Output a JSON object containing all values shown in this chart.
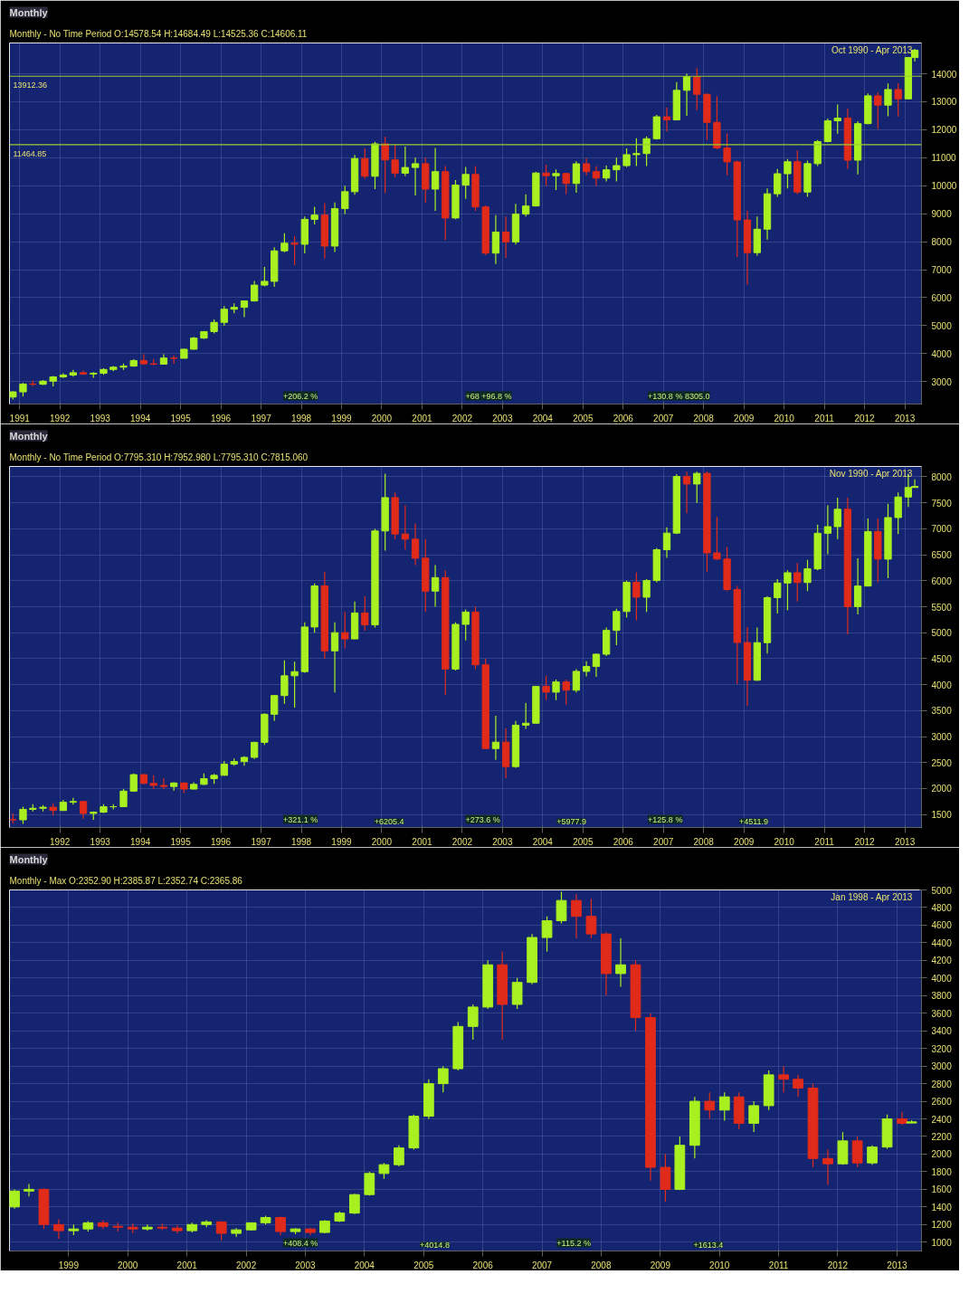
{
  "chart_data": [
    {
      "type": "candlestick",
      "title": "Monthly",
      "subtitle": "Monthly - No Time Period O:14578.54 H:14684.49 L:14525.36 C:14606.11",
      "x": [
        "1990-11",
        "1991-02",
        "1991-05",
        "1991-08",
        "1991-11",
        "1992-02",
        "1992-05",
        "1992-08",
        "1992-11",
        "1993-02",
        "1993-05",
        "1993-08",
        "1993-11",
        "1994-02",
        "1994-05",
        "1994-08",
        "1994-11",
        "1995-02",
        "1995-05",
        "1995-08",
        "1995-11",
        "1996-02",
        "1996-05",
        "1996-08",
        "1996-11",
        "1997-02",
        "1997-05",
        "1997-08",
        "1997-11",
        "1998-02",
        "1998-05",
        "1998-08",
        "1998-11",
        "1999-02",
        "1999-05",
        "1999-08",
        "1999-11",
        "2000-02",
        "2000-05",
        "2000-08",
        "2000-11",
        "2001-02",
        "2001-05",
        "2001-08",
        "2001-11",
        "2002-02",
        "2002-05",
        "2002-08",
        "2002-11",
        "2003-02",
        "2003-05",
        "2003-08",
        "2003-11",
        "2004-02",
        "2004-05",
        "2004-08",
        "2004-11",
        "2005-02",
        "2005-05",
        "2005-08",
        "2005-11",
        "2006-02",
        "2006-05",
        "2006-08",
        "2006-11",
        "2007-02",
        "2007-05",
        "2007-08",
        "2007-11",
        "2008-02",
        "2008-05",
        "2008-08",
        "2008-11",
        "2009-02",
        "2009-05",
        "2009-08",
        "2009-11",
        "2010-02",
        "2010-05",
        "2010-08",
        "2010-11",
        "2011-02",
        "2011-05",
        "2011-08",
        "2011-11",
        "2012-02",
        "2012-05",
        "2012-08",
        "2012-11",
        "2013-02",
        "2013-04"
      ],
      "ohlc": [
        [
          2450,
          2650,
          2360,
          2634
        ],
        [
          2634,
          2950,
          2470,
          2914
        ],
        [
          2914,
          3040,
          2840,
          2906
        ],
        [
          2906,
          3060,
          2880,
          3017
        ],
        [
          3017,
          3200,
          2830,
          3169
        ],
        [
          3169,
          3300,
          3130,
          3236
        ],
        [
          3236,
          3420,
          3180,
          3319
        ],
        [
          3319,
          3400,
          3240,
          3272
        ],
        [
          3272,
          3340,
          3140,
          3301
        ],
        [
          3301,
          3480,
          3240,
          3435
        ],
        [
          3435,
          3560,
          3370,
          3516
        ],
        [
          3516,
          3650,
          3420,
          3555
        ],
        [
          3555,
          3800,
          3530,
          3754
        ],
        [
          3754,
          3980,
          3600,
          3636
        ],
        [
          3636,
          3810,
          3590,
          3625
        ],
        [
          3625,
          3980,
          3620,
          3843
        ],
        [
          3843,
          3940,
          3640,
          3834
        ],
        [
          3834,
          4170,
          3830,
          4158
        ],
        [
          4158,
          4600,
          4150,
          4556
        ],
        [
          4556,
          4800,
          4530,
          4789
        ],
        [
          4789,
          5220,
          4720,
          5117
        ],
        [
          5117,
          5700,
          5000,
          5587
        ],
        [
          5587,
          5800,
          5440,
          5654
        ],
        [
          5654,
          5900,
          5300,
          5882
        ],
        [
          5882,
          6600,
          5860,
          6448
        ],
        [
          6448,
          7100,
          6400,
          6583
        ],
        [
          6583,
          7800,
          6390,
          7672
        ],
        [
          7672,
          8300,
          7620,
          7945
        ],
        [
          7945,
          8200,
          7160,
          7908
        ],
        [
          7908,
          8900,
          7580,
          8799
        ],
        [
          8799,
          9250,
          8620,
          8952
        ],
        [
          8952,
          9380,
          7400,
          7843
        ],
        [
          7843,
          9400,
          7630,
          9181
        ],
        [
          9181,
          10000,
          8990,
          9786
        ],
        [
          9786,
          11100,
          9680,
          10970
        ],
        [
          10970,
          11330,
          10250,
          10337
        ],
        [
          10337,
          11570,
          9880,
          11497
        ],
        [
          11497,
          11750,
          9730,
          10922
        ],
        [
          10922,
          11460,
          10300,
          10448
        ],
        [
          10448,
          11400,
          10350,
          10651
        ],
        [
          10651,
          11000,
          9650,
          10787
        ],
        [
          10787,
          11000,
          9390,
          9879
        ],
        [
          9879,
          11350,
          9100,
          10502
        ],
        [
          10502,
          10700,
          8060,
          8848
        ],
        [
          8848,
          10200,
          8800,
          10022
        ],
        [
          10022,
          10670,
          9530,
          10404
        ],
        [
          10404,
          10700,
          9100,
          9243
        ],
        [
          9243,
          9300,
          7530,
          7592
        ],
        [
          7592,
          8950,
          7200,
          8342
        ],
        [
          8342,
          8900,
          7420,
          7992
        ],
        [
          7992,
          9350,
          7900,
          8985
        ],
        [
          8985,
          9690,
          8900,
          9275
        ],
        [
          9275,
          10490,
          9270,
          10454
        ],
        [
          10454,
          10750,
          10000,
          10358
        ],
        [
          10358,
          10580,
          9850,
          10435
        ],
        [
          10435,
          10450,
          9700,
          10080
        ],
        [
          10080,
          10870,
          9750,
          10783
        ],
        [
          10783,
          10980,
          10370,
          10504
        ],
        [
          10504,
          10700,
          10000,
          10275
        ],
        [
          10275,
          10720,
          10150,
          10569
        ],
        [
          10569,
          11000,
          10150,
          10718
        ],
        [
          10718,
          11330,
          10660,
          11109
        ],
        [
          11109,
          11700,
          10700,
          11150
        ],
        [
          11150,
          11760,
          10700,
          11679
        ],
        [
          11679,
          12530,
          11650,
          12463
        ],
        [
          12463,
          12800,
          11940,
          12354
        ],
        [
          12354,
          13700,
          12350,
          13408
        ],
        [
          13408,
          14000,
          12500,
          13896
        ],
        [
          13896,
          14200,
          12700,
          13265
        ],
        [
          13265,
          13300,
          11630,
          12263
        ],
        [
          12263,
          13200,
          11300,
          11350
        ],
        [
          11350,
          11870,
          10370,
          10851
        ],
        [
          10851,
          10900,
          7450,
          8776
        ],
        [
          8776,
          9100,
          6470,
          7609
        ],
        [
          7609,
          8900,
          7500,
          8447
        ],
        [
          8447,
          9900,
          8080,
          9712
        ],
        [
          9712,
          10600,
          9600,
          10428
        ],
        [
          10428,
          10950,
          9900,
          10857
        ],
        [
          10857,
          11260,
          9700,
          9774
        ],
        [
          9774,
          10900,
          9600,
          10788
        ],
        [
          10788,
          11630,
          10700,
          11578
        ],
        [
          11578,
          12400,
          11550,
          12320
        ],
        [
          12320,
          12900,
          11860,
          12414
        ],
        [
          12414,
          12750,
          10600,
          10913
        ],
        [
          10913,
          12300,
          10400,
          12218
        ],
        [
          12218,
          13300,
          12200,
          13212
        ],
        [
          13212,
          13340,
          12030,
          12880
        ],
        [
          12880,
          13650,
          12480,
          13437
        ],
        [
          13437,
          13660,
          12470,
          13104
        ],
        [
          13104,
          14600,
          13100,
          14579
        ],
        [
          14579,
          14890,
          14440,
          14840
        ]
      ],
      "xlim": [
        "1990-10",
        "2013-06"
      ],
      "xticks": [
        "1991",
        "1992",
        "1993",
        "1994",
        "1995",
        "1996",
        "1997",
        "1998",
        "1999",
        "2000",
        "2001",
        "2002",
        "2003",
        "2004",
        "2005",
        "2006",
        "2007",
        "2008",
        "2009",
        "2010",
        "2011",
        "2012",
        "2013"
      ],
      "ylim": [
        2200,
        15100
      ],
      "yticks": [
        3000,
        4000,
        5000,
        6000,
        7000,
        8000,
        9000,
        10000,
        11000,
        12000,
        13000,
        14000
      ],
      "grid": true,
      "ref_lines": [
        {
          "axis": "y",
          "value": 13912.36,
          "label": "13912.36",
          "color": "#9acd32"
        },
        {
          "axis": "y",
          "value": 11464.85,
          "label": "11464.85",
          "color": "#9acd32"
        }
      ],
      "annotations": [
        "Oct 1990  -  Apr 2013",
        "+206.2 %",
        "+68 +96.8 %",
        "+130.8 % 8305.0"
      ]
    },
    {
      "type": "candlestick",
      "title": "Monthly",
      "subtitle": "Monthly - No Time Period O:7795.310 H:7952.980 L:7795.310 C:7815.060",
      "x": [
        "1990-11",
        "1991-02",
        "1991-05",
        "1991-08",
        "1991-11",
        "1992-02",
        "1992-05",
        "1992-08",
        "1992-11",
        "1993-02",
        "1993-05",
        "1993-08",
        "1993-11",
        "1994-02",
        "1994-05",
        "1994-08",
        "1994-11",
        "1995-02",
        "1995-05",
        "1995-08",
        "1995-11",
        "1996-02",
        "1996-05",
        "1996-08",
        "1996-11",
        "1997-02",
        "1997-05",
        "1997-08",
        "1997-11",
        "1998-02",
        "1998-05",
        "1998-08",
        "1998-11",
        "1999-02",
        "1999-05",
        "1999-08",
        "1999-11",
        "2000-02",
        "2000-05",
        "2000-08",
        "2000-11",
        "2001-02",
        "2001-05",
        "2001-08",
        "2001-11",
        "2002-02",
        "2002-05",
        "2002-08",
        "2002-11",
        "2003-02",
        "2003-05",
        "2003-08",
        "2003-11",
        "2004-02",
        "2004-05",
        "2004-08",
        "2004-11",
        "2005-02",
        "2005-05",
        "2005-08",
        "2005-11",
        "2006-02",
        "2006-05",
        "2006-08",
        "2006-11",
        "2007-02",
        "2007-05",
        "2007-08",
        "2007-11",
        "2008-02",
        "2008-05",
        "2008-08",
        "2008-11",
        "2009-02",
        "2009-05",
        "2009-08",
        "2009-11",
        "2010-02",
        "2010-05",
        "2010-08",
        "2010-11",
        "2011-02",
        "2011-05",
        "2011-08",
        "2011-11",
        "2012-02",
        "2012-05",
        "2012-08",
        "2012-11",
        "2013-02",
        "2013-04"
      ],
      "ohlc": [
        [
          1400,
          1520,
          1330,
          1398
        ],
        [
          1398,
          1650,
          1320,
          1600
        ],
        [
          1600,
          1700,
          1560,
          1620
        ],
        [
          1620,
          1680,
          1560,
          1640
        ],
        [
          1640,
          1720,
          1480,
          1578
        ],
        [
          1578,
          1780,
          1570,
          1736
        ],
        [
          1736,
          1820,
          1690,
          1750
        ],
        [
          1750,
          1760,
          1420,
          1520
        ],
        [
          1520,
          1560,
          1400,
          1545
        ],
        [
          1545,
          1700,
          1530,
          1650
        ],
        [
          1650,
          1700,
          1600,
          1650
        ],
        [
          1650,
          1990,
          1640,
          1950
        ],
        [
          1950,
          2290,
          1940,
          2267
        ],
        [
          2267,
          2280,
          2080,
          2100
        ],
        [
          2100,
          2250,
          1990,
          2060
        ],
        [
          2060,
          2200,
          1990,
          2040
        ],
        [
          2040,
          2120,
          1960,
          2107
        ],
        [
          2107,
          2120,
          1910,
          1990
        ],
        [
          1990,
          2120,
          1980,
          2080
        ],
        [
          2080,
          2290,
          2070,
          2190
        ],
        [
          2190,
          2280,
          2090,
          2254
        ],
        [
          2254,
          2530,
          2250,
          2470
        ],
        [
          2470,
          2580,
          2440,
          2520
        ],
        [
          2520,
          2620,
          2440,
          2600
        ],
        [
          2600,
          2900,
          2570,
          2889
        ],
        [
          2889,
          3450,
          2840,
          3430
        ],
        [
          3430,
          3800,
          3300,
          3790
        ],
        [
          3790,
          4470,
          3630,
          4170
        ],
        [
          4170,
          4440,
          3560,
          4250
        ],
        [
          4250,
          5200,
          4230,
          5110
        ],
        [
          5110,
          5950,
          5000,
          5900
        ],
        [
          5900,
          6170,
          4500,
          4650
        ],
        [
          4650,
          5200,
          3850,
          5000
        ],
        [
          5000,
          5400,
          4700,
          4880
        ],
        [
          4880,
          5600,
          4880,
          5380
        ],
        [
          5380,
          5700,
          5040,
          5150
        ],
        [
          5150,
          7000,
          5100,
          6958
        ],
        [
          6958,
          8060,
          6580,
          7600
        ],
        [
          7600,
          7700,
          6800,
          6900
        ],
        [
          6900,
          7450,
          6600,
          6800
        ],
        [
          6800,
          7100,
          6300,
          6434
        ],
        [
          6434,
          6800,
          5400,
          5800
        ],
        [
          5800,
          6300,
          5500,
          6060
        ],
        [
          6060,
          6200,
          3800,
          4300
        ],
        [
          4300,
          5200,
          4270,
          5160
        ],
        [
          5160,
          5450,
          4850,
          5397
        ],
        [
          5397,
          5500,
          4300,
          4382
        ],
        [
          4382,
          4500,
          2770,
          2770
        ],
        [
          2770,
          3400,
          2550,
          2893
        ],
        [
          2893,
          3160,
          2200,
          2423
        ],
        [
          2423,
          3300,
          2400,
          3220
        ],
        [
          3220,
          3650,
          3150,
          3257
        ],
        [
          3257,
          3970,
          3250,
          3965
        ],
        [
          3965,
          4170,
          3700,
          3856
        ],
        [
          3856,
          4100,
          3700,
          4052
        ],
        [
          4052,
          4100,
          3620,
          3893
        ],
        [
          3893,
          4300,
          3850,
          4256
        ],
        [
          4256,
          4450,
          4160,
          4349
        ],
        [
          4349,
          4600,
          4150,
          4586
        ],
        [
          4586,
          5100,
          4550,
          5044
        ],
        [
          5044,
          5460,
          4760,
          5408
        ],
        [
          5408,
          6000,
          5290,
          5970
        ],
        [
          5970,
          6160,
          5240,
          5684
        ],
        [
          5684,
          6030,
          5400,
          6004
        ],
        [
          6004,
          6630,
          5970,
          6597
        ],
        [
          6597,
          7030,
          6440,
          6917
        ],
        [
          6917,
          8050,
          6900,
          8007
        ],
        [
          8007,
          8100,
          7300,
          7862
        ],
        [
          7862,
          8100,
          7500,
          8067
        ],
        [
          8067,
          8100,
          6170,
          6535
        ],
        [
          6535,
          7230,
          6400,
          6418
        ],
        [
          6418,
          6650,
          5800,
          5831
        ],
        [
          5831,
          5900,
          4014,
          4810
        ],
        [
          4810,
          5110,
          3590,
          4085
        ],
        [
          4085,
          5100,
          4070,
          4808
        ],
        [
          4808,
          5700,
          4600,
          5675
        ],
        [
          5675,
          6030,
          5370,
          5957
        ],
        [
          5957,
          6200,
          5430,
          6154
        ],
        [
          6154,
          6340,
          5600,
          5966
        ],
        [
          5966,
          6400,
          5800,
          6229
        ],
        [
          6229,
          7080,
          6200,
          6914
        ],
        [
          6914,
          7450,
          6510,
          7041
        ],
        [
          7041,
          7600,
          6800,
          7376
        ],
        [
          7376,
          7600,
          4970,
          5502
        ],
        [
          5502,
          6430,
          5350,
          5898
        ],
        [
          5898,
          7200,
          5890,
          6947
        ],
        [
          6947,
          7200,
          5970,
          6416
        ],
        [
          6416,
          7480,
          6050,
          7216
        ],
        [
          7216,
          7700,
          6900,
          7612
        ],
        [
          7612,
          8060,
          7420,
          7795
        ],
        [
          7795,
          7953,
          7795,
          7815
        ]
      ],
      "xlim": [
        "1990-10",
        "2013-06"
      ],
      "xticks": [
        "1992",
        "1993",
        "1994",
        "1995",
        "1996",
        "1997",
        "1998",
        "1999",
        "2000",
        "2001",
        "2002",
        "2003",
        "2004",
        "2005",
        "2006",
        "2007",
        "2008",
        "2009",
        "2010",
        "2011",
        "2012",
        "2013"
      ],
      "ylim": [
        1250,
        8200
      ],
      "yticks": [
        1500,
        2000,
        2500,
        3000,
        3500,
        4000,
        4500,
        5000,
        5500,
        6000,
        6500,
        7000,
        7500,
        8000
      ],
      "grid": true,
      "annotations": [
        "Nov 1990  -  Apr 2013",
        "+321.1 %",
        "+6205.4",
        "+273.6 %",
        "+5977.9",
        "+125.8 %",
        "+4511.9"
      ]
    },
    {
      "type": "candlestick",
      "title": "Monthly",
      "subtitle": "Monthly - Max O:2352.90 H:2385.87 L:2352.74 C:2365.86",
      "x": [
        "1998-02",
        "1998-05",
        "1998-08",
        "1998-11",
        "1999-02",
        "1999-05",
        "1999-08",
        "1999-11",
        "2000-02",
        "2000-05",
        "2000-08",
        "2000-11",
        "2001-02",
        "2001-05",
        "2001-08",
        "2001-11",
        "2002-02",
        "2002-05",
        "2002-08",
        "2002-11",
        "2003-02",
        "2003-05",
        "2003-08",
        "2003-11",
        "2004-02",
        "2004-05",
        "2004-08",
        "2004-11",
        "2005-02",
        "2005-05",
        "2005-08",
        "2005-11",
        "2006-02",
        "2006-05",
        "2006-08",
        "2006-11",
        "2007-02",
        "2007-05",
        "2007-08",
        "2007-11",
        "2008-02",
        "2008-05",
        "2008-08",
        "2008-11",
        "2009-02",
        "2009-05",
        "2009-08",
        "2009-11",
        "2010-02",
        "2010-05",
        "2010-08",
        "2010-11",
        "2011-02",
        "2011-05",
        "2011-08",
        "2011-11",
        "2012-02",
        "2012-05",
        "2012-08",
        "2012-11",
        "2013-02",
        "2013-04"
      ],
      "ohlc": [
        [
          1400,
          1600,
          1380,
          1580
        ],
        [
          1580,
          1660,
          1520,
          1600
        ],
        [
          1600,
          1610,
          1150,
          1200
        ],
        [
          1200,
          1260,
          1040,
          1130
        ],
        [
          1130,
          1200,
          1080,
          1150
        ],
        [
          1150,
          1240,
          1120,
          1220
        ],
        [
          1220,
          1250,
          1150,
          1180
        ],
        [
          1180,
          1220,
          1120,
          1170
        ],
        [
          1170,
          1210,
          1100,
          1150
        ],
        [
          1150,
          1200,
          1130,
          1170
        ],
        [
          1170,
          1210,
          1140,
          1160
        ],
        [
          1160,
          1190,
          1100,
          1130
        ],
        [
          1130,
          1220,
          1110,
          1200
        ],
        [
          1200,
          1250,
          1170,
          1230
        ],
        [
          1230,
          1240,
          1020,
          1100
        ],
        [
          1100,
          1160,
          1060,
          1140
        ],
        [
          1140,
          1220,
          1130,
          1220
        ],
        [
          1220,
          1300,
          1200,
          1280
        ],
        [
          1280,
          1290,
          1080,
          1120
        ],
        [
          1120,
          1160,
          1090,
          1150
        ],
        [
          1150,
          1160,
          1080,
          1110
        ],
        [
          1110,
          1250,
          1100,
          1240
        ],
        [
          1240,
          1350,
          1230,
          1330
        ],
        [
          1330,
          1550,
          1320,
          1540
        ],
        [
          1540,
          1800,
          1530,
          1780
        ],
        [
          1780,
          1900,
          1720,
          1880
        ],
        [
          1880,
          2100,
          1860,
          2070
        ],
        [
          2070,
          2450,
          2050,
          2430
        ],
        [
          2430,
          2850,
          2400,
          2800
        ],
        [
          2800,
          3000,
          2700,
          2970
        ],
        [
          2970,
          3500,
          2950,
          3450
        ],
        [
          3450,
          3700,
          3300,
          3670
        ],
        [
          3670,
          4200,
          3650,
          4150
        ],
        [
          4150,
          4300,
          3300,
          3700
        ],
        [
          3700,
          4000,
          3650,
          3950
        ],
        [
          3950,
          4500,
          3930,
          4460
        ],
        [
          4460,
          4700,
          4300,
          4650
        ],
        [
          4650,
          4980,
          4620,
          4880
        ],
        [
          4880,
          4950,
          4450,
          4700
        ],
        [
          4700,
          4900,
          4450,
          4500
        ],
        [
          4500,
          4520,
          3800,
          4050
        ],
        [
          4050,
          4450,
          3900,
          4150
        ],
        [
          4150,
          4200,
          3400,
          3550
        ],
        [
          3550,
          3600,
          1700,
          1850
        ],
        [
          1850,
          2000,
          1460,
          1600
        ],
        [
          1600,
          2200,
          1590,
          2100
        ],
        [
          2100,
          2650,
          1950,
          2600
        ],
        [
          2600,
          2700,
          2400,
          2500
        ],
        [
          2500,
          2700,
          2380,
          2650
        ],
        [
          2650,
          2700,
          2280,
          2350
        ],
        [
          2350,
          2600,
          2250,
          2550
        ],
        [
          2550,
          2950,
          2500,
          2900
        ],
        [
          2900,
          3000,
          2700,
          2850
        ],
        [
          2850,
          2900,
          2650,
          2750
        ],
        [
          2750,
          2800,
          1850,
          1950
        ],
        [
          1950,
          2050,
          1650,
          1890
        ],
        [
          1890,
          2250,
          1880,
          2150
        ],
        [
          2150,
          2200,
          1850,
          1900
        ],
        [
          1900,
          2100,
          1880,
          2080
        ],
        [
          2080,
          2450,
          2060,
          2400
        ],
        [
          2400,
          2480,
          2330,
          2350
        ],
        [
          2353,
          2386,
          2353,
          2366
        ]
      ],
      "xlim": [
        "1998-01",
        "2013-06"
      ],
      "xticks": [
        "1999",
        "2000",
        "2001",
        "2002",
        "2003",
        "2004",
        "2005",
        "2006",
        "2007",
        "2008",
        "2009",
        "2010",
        "2011",
        "2012",
        "2013"
      ],
      "ylim": [
        900,
        5000
      ],
      "yticks": [
        1000,
        1200,
        1400,
        1600,
        1800,
        2000,
        2200,
        2400,
        2600,
        2800,
        3000,
        3200,
        3400,
        3600,
        3800,
        4000,
        4200,
        4400,
        4600,
        4800,
        5000
      ],
      "grid": true,
      "annotations": [
        "Jan 1998  -  Apr 2013",
        "+408.4 %",
        "+4014.8",
        "+115.2 %",
        "+1613.4"
      ]
    }
  ]
}
